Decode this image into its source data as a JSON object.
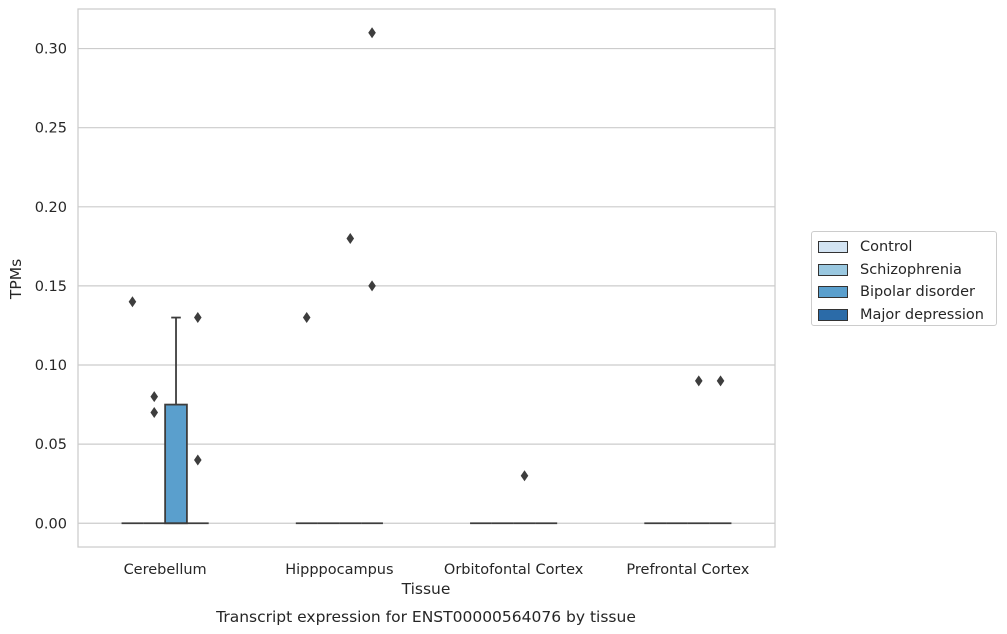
{
  "chart_data": {
    "type": "box",
    "caption": "Transcript expression for ENST00000564076 by tissue",
    "xlabel": "Tissue",
    "ylabel": "TPMs",
    "categories": [
      "Cerebellum",
      "Hipppocampus",
      "Orbitofontal Cortex",
      "Prefrontal Cortex"
    ],
    "ylim": [
      -0.015,
      0.325
    ],
    "yticks": [
      "0.00",
      "0.05",
      "0.10",
      "0.15",
      "0.20",
      "0.25",
      "0.30"
    ],
    "grid": true,
    "legend_position": "right",
    "series": [
      {
        "name": "Control",
        "color": "#d3e4f3",
        "boxes": [
          {
            "category": "Cerebellum",
            "q1": 0,
            "median": 0,
            "q3": 0,
            "whisker_low": 0,
            "whisker_high": 0,
            "outliers": [
              0.14
            ]
          },
          {
            "category": "Hipppocampus",
            "q1": 0,
            "median": 0,
            "q3": 0,
            "whisker_low": 0,
            "whisker_high": 0,
            "outliers": [
              0.13
            ]
          },
          {
            "category": "Orbitofontal Cortex",
            "q1": 0,
            "median": 0,
            "q3": 0,
            "whisker_low": 0,
            "whisker_high": 0,
            "outliers": []
          },
          {
            "category": "Prefrontal Cortex",
            "q1": 0,
            "median": 0,
            "q3": 0,
            "whisker_low": 0,
            "whisker_high": 0,
            "outliers": []
          }
        ]
      },
      {
        "name": "Schizophrenia",
        "color": "#9ac8e0",
        "boxes": [
          {
            "category": "Cerebellum",
            "q1": 0,
            "median": 0,
            "q3": 0,
            "whisker_low": 0,
            "whisker_high": 0,
            "outliers": [
              0.07,
              0.08
            ]
          },
          {
            "category": "Hipppocampus",
            "q1": 0,
            "median": 0,
            "q3": 0,
            "whisker_low": 0,
            "whisker_high": 0,
            "outliers": []
          },
          {
            "category": "Orbitofontal Cortex",
            "q1": 0,
            "median": 0,
            "q3": 0,
            "whisker_low": 0,
            "whisker_high": 0,
            "outliers": []
          },
          {
            "category": "Prefrontal Cortex",
            "q1": 0,
            "median": 0,
            "q3": 0,
            "whisker_low": 0,
            "whisker_high": 0,
            "outliers": []
          }
        ]
      },
      {
        "name": "Bipolar disorder",
        "color": "#5a9fcd",
        "boxes": [
          {
            "category": "Cerebellum",
            "q1": 0,
            "median": 0,
            "q3": 0.075,
            "whisker_low": 0,
            "whisker_high": 0.13,
            "outliers": []
          },
          {
            "category": "Hipppocampus",
            "q1": 0,
            "median": 0,
            "q3": 0,
            "whisker_low": 0,
            "whisker_high": 0,
            "outliers": [
              0.18
            ]
          },
          {
            "category": "Orbitofontal Cortex",
            "q1": 0,
            "median": 0,
            "q3": 0,
            "whisker_low": 0,
            "whisker_high": 0,
            "outliers": [
              0.03
            ]
          },
          {
            "category": "Prefrontal Cortex",
            "q1": 0,
            "median": 0,
            "q3": 0,
            "whisker_low": 0,
            "whisker_high": 0,
            "outliers": [
              0.09
            ]
          }
        ]
      },
      {
        "name": "Major depression",
        "color": "#2b6ba8",
        "boxes": [
          {
            "category": "Cerebellum",
            "q1": 0,
            "median": 0,
            "q3": 0,
            "whisker_low": 0,
            "whisker_high": 0,
            "outliers": [
              0.04,
              0.13
            ]
          },
          {
            "category": "Hipppocampus",
            "q1": 0,
            "median": 0,
            "q3": 0,
            "whisker_low": 0,
            "whisker_high": 0,
            "outliers": [
              0.15,
              0.31
            ]
          },
          {
            "category": "Orbitofontal Cortex",
            "q1": 0,
            "median": 0,
            "q3": 0,
            "whisker_low": 0,
            "whisker_high": 0,
            "outliers": []
          },
          {
            "category": "Prefrontal Cortex",
            "q1": 0,
            "median": 0,
            "q3": 0,
            "whisker_low": 0,
            "whisker_high": 0,
            "outliers": [
              0.09
            ]
          }
        ]
      }
    ]
  }
}
